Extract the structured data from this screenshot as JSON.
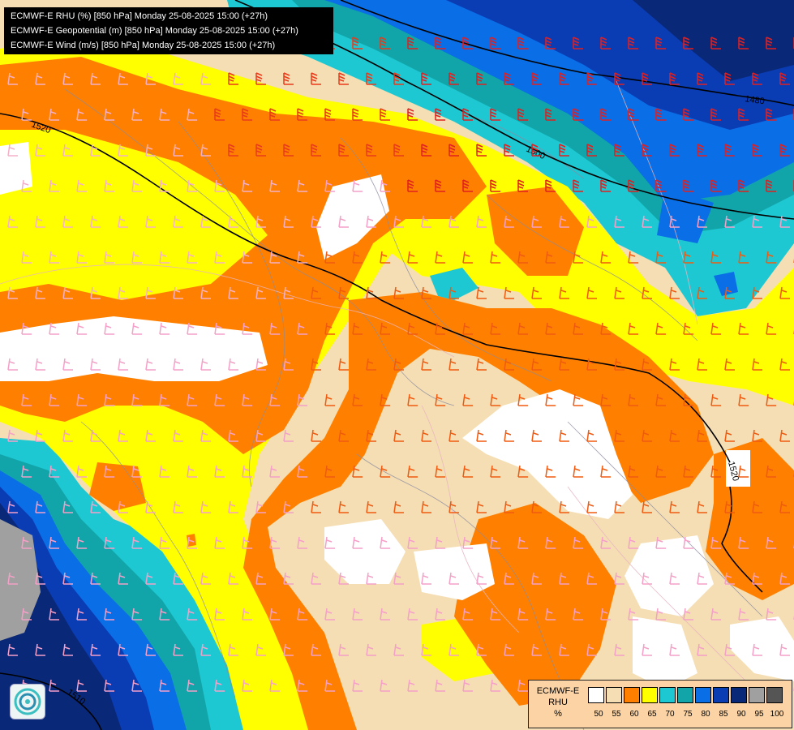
{
  "header": {
    "line1": "ECMWF-E RHU (%) [850 hPa] Monday 25-08-2025 15:00 (+27h)",
    "line2": "ECMWF-E Geopotential (m) [850 hPa] Monday 25-08-2025 15:00 (+27h)",
    "line3": "ECMWF-E Wind (m/s) [850 hPa] Monday 25-08-2025 15:00 (+27h)"
  },
  "legend": {
    "model": "ECMWF-E",
    "variable": "RHU",
    "unit": "%",
    "swatches": [
      {
        "color": "#ffffff"
      },
      {
        "color": "#f5deb3"
      },
      {
        "color": "#ff8000"
      },
      {
        "color": "#ffff00"
      },
      {
        "color": "#1ec8d2"
      },
      {
        "color": "#11a5aa"
      },
      {
        "color": "#0a6ee6"
      },
      {
        "color": "#0a3cb4"
      },
      {
        "color": "#0a2878"
      },
      {
        "color": "#a0a0a0"
      },
      {
        "color": "#555555"
      }
    ],
    "labels": [
      "50",
      "55",
      "60",
      "65",
      "70",
      "75",
      "80",
      "85",
      "90",
      "95",
      "100"
    ]
  },
  "contours": {
    "labels": [
      "1520",
      "1500",
      "1480",
      "1520",
      "1510"
    ]
  },
  "logo": {
    "icon": "swirl-logo-icon"
  }
}
